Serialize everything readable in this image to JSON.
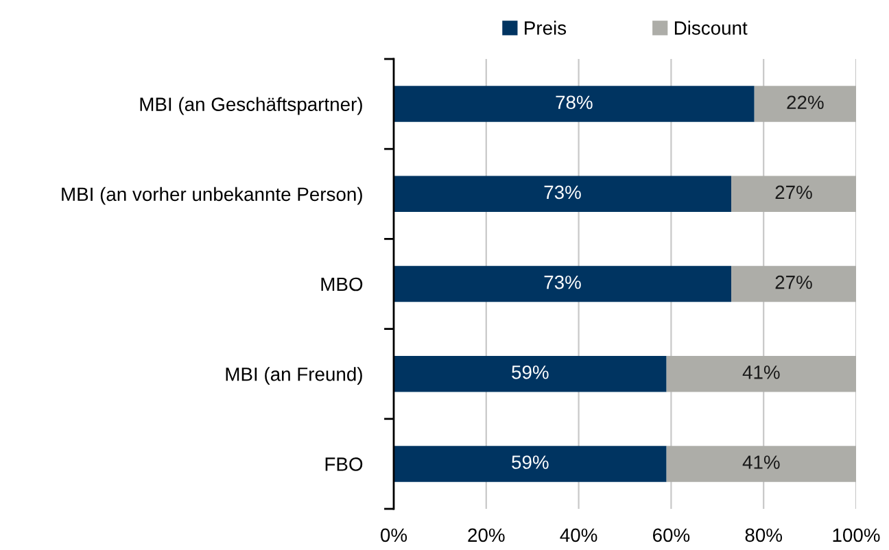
{
  "chart_data": {
    "type": "bar",
    "orientation": "horizontal",
    "stacked": true,
    "categories": [
      "MBI (an Geschäftspartner)",
      "MBI (an vorher unbekannte Person)",
      "MBO",
      "MBI (an Freund)",
      "FBO"
    ],
    "series": [
      {
        "name": "Preis",
        "color": "#003461",
        "values": [
          78,
          73,
          73,
          59,
          59
        ],
        "value_labels": [
          "78%",
          "73%",
          "73%",
          "59%",
          "59%"
        ]
      },
      {
        "name": "Discount",
        "color": "#adada8",
        "values": [
          22,
          27,
          27,
          41,
          41
        ],
        "value_labels": [
          "22%",
          "27%",
          "27%",
          "41%",
          "41%"
        ]
      }
    ],
    "xlim": [
      0,
      100
    ],
    "xticks": [
      {
        "value": 0,
        "label": "0%"
      },
      {
        "value": 20,
        "label": "20%"
      },
      {
        "value": 40,
        "label": "40%"
      },
      {
        "value": 60,
        "label": "60%"
      },
      {
        "value": 80,
        "label": "80%"
      },
      {
        "value": 100,
        "label": "100%"
      }
    ],
    "grid": "x",
    "legend": "top"
  }
}
